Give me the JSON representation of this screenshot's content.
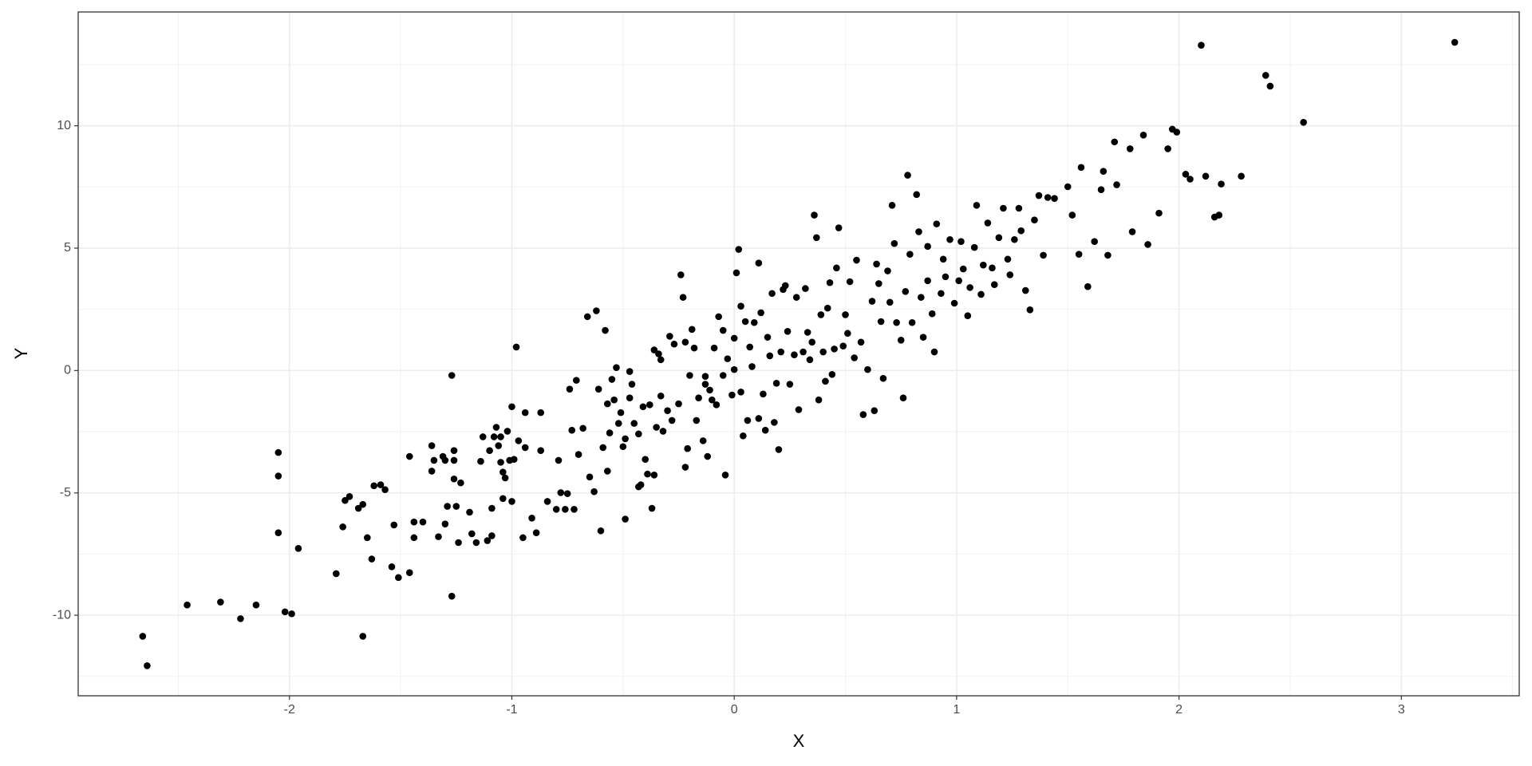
{
  "chart_data": {
    "type": "scatter",
    "x_label": "X",
    "y_label": "Y",
    "color": "#000000",
    "grid": true,
    "xlim": [
      -2.95,
      3.53
    ],
    "ylim": [
      -13.29,
      14.65
    ],
    "xticks": [
      -2,
      -1,
      0,
      1,
      2,
      3
    ],
    "yticks": [
      -10,
      -5,
      0,
      5,
      10
    ],
    "xminor": [
      -2.5,
      -1.5,
      -0.5,
      0.5,
      1.5,
      2.5,
      3.5
    ],
    "yminor": [
      -12.5,
      -7.5,
      -2.5,
      2.5,
      7.5,
      12.5
    ],
    "x": [
      -2.66,
      -2.64,
      -2.46,
      -2.31,
      -2.22,
      -2.15,
      -2.05,
      -2.05,
      -2.05,
      -2.02,
      -1.99,
      -1.96,
      -1.79,
      -1.76,
      -1.75,
      -1.73,
      -1.69,
      -1.67,
      -1.67,
      -1.65,
      -1.63,
      -1.62,
      -1.59,
      -1.57,
      -1.54,
      -1.53,
      -1.51,
      -1.46,
      -1.46,
      -1.44,
      -1.44,
      -1.4,
      -1.36,
      -1.36,
      -1.35,
      -1.33,
      -1.31,
      -1.3,
      -1.3,
      -1.29,
      -1.27,
      -1.27,
      -1.26,
      -1.26,
      -1.25,
      -1.26,
      -1.24,
      -1.23,
      -1.19,
      -1.18,
      -1.16,
      -1.14,
      -1.13,
      -1.11,
      -1.1,
      -1.09,
      -1.09,
      -1.08,
      -1.07,
      -1.06,
      -1.05,
      -1.05,
      -1.04,
      -1.04,
      -1.03,
      -1.02,
      -1.01,
      -1.0,
      -1.0,
      -0.99,
      -0.98,
      -0.97,
      -0.95,
      -0.94,
      -0.94,
      -0.91,
      -0.89,
      -0.87,
      -0.87,
      -0.84,
      -0.8,
      -0.79,
      -0.78,
      -0.76,
      -0.75,
      -0.74,
      -0.73,
      -0.72,
      -0.71,
      -0.7,
      -0.68,
      -0.66,
      -0.65,
      -0.63,
      -0.62,
      -0.61,
      -0.6,
      -0.59,
      -0.58,
      -0.57,
      -0.57,
      -0.56,
      -0.55,
      -0.54,
      -0.53,
      -0.52,
      -0.51,
      -0.5,
      -0.49,
      -0.49,
      -0.47,
      -0.47,
      -0.46,
      -0.45,
      -0.43,
      -0.43,
      -0.42,
      -0.41,
      -0.4,
      -0.39,
      -0.38,
      -0.37,
      -0.36,
      -0.36,
      -0.35,
      -0.34,
      -0.33,
      -0.33,
      -0.32,
      -0.3,
      -0.29,
      -0.28,
      -0.27,
      -0.25,
      -0.24,
      -0.23,
      -0.22,
      -0.22,
      -0.21,
      -0.2,
      -0.19,
      -0.18,
      -0.17,
      -0.16,
      -0.14,
      -0.13,
      -0.13,
      -0.12,
      -0.11,
      -0.1,
      -0.09,
      -0.08,
      -0.07,
      -0.05,
      -0.05,
      -0.04,
      -0.03,
      -0.01,
      0.0,
      0.0,
      0.01,
      0.02,
      0.03,
      0.03,
      0.04,
      0.05,
      0.06,
      0.07,
      0.08,
      0.09,
      0.11,
      0.11,
      0.12,
      0.13,
      0.14,
      0.15,
      0.16,
      0.17,
      0.18,
      0.19,
      0.2,
      0.21,
      0.22,
      0.23,
      0.24,
      0.25,
      0.27,
      0.28,
      0.29,
      0.31,
      0.32,
      0.33,
      0.34,
      0.35,
      0.36,
      0.37,
      0.38,
      0.39,
      0.4,
      0.41,
      0.42,
      0.43,
      0.44,
      0.45,
      0.46,
      0.47,
      0.49,
      0.5,
      0.51,
      0.52,
      0.54,
      0.55,
      0.57,
      0.58,
      0.6,
      0.62,
      0.63,
      0.64,
      0.65,
      0.66,
      0.67,
      0.69,
      0.7,
      0.71,
      0.72,
      0.73,
      0.75,
      0.76,
      0.77,
      0.78,
      0.79,
      0.8,
      0.82,
      0.83,
      0.84,
      0.85,
      0.87,
      0.87,
      0.89,
      0.9,
      0.91,
      0.93,
      0.94,
      0.95,
      0.97,
      0.99,
      1.01,
      1.02,
      1.03,
      1.05,
      1.06,
      1.08,
      1.09,
      1.11,
      1.12,
      1.14,
      1.16,
      1.17,
      1.19,
      1.21,
      1.23,
      1.24,
      1.26,
      1.28,
      1.29,
      1.31,
      1.33,
      1.35,
      1.37,
      1.39,
      1.41,
      1.44,
      1.5,
      1.52,
      1.55,
      1.56,
      1.59,
      1.62,
      1.65,
      1.66,
      1.68,
      1.71,
      1.72,
      1.78,
      1.79,
      1.84,
      1.86,
      1.91,
      1.95,
      1.97,
      1.99,
      2.03,
      2.05,
      2.1,
      2.12,
      2.16,
      2.18,
      2.19,
      2.28,
      2.39,
      2.41,
      2.56,
      3.24
    ],
    "y": [
      -10.86,
      -12.06,
      -9.58,
      -9.46,
      -10.14,
      -9.58,
      -3.35,
      -4.31,
      -6.63,
      -9.86,
      -9.94,
      -7.27,
      -8.3,
      -6.39,
      -5.31,
      -5.15,
      -5.63,
      -5.47,
      -10.86,
      -6.83,
      -7.7,
      -4.71,
      -4.67,
      -4.87,
      -8.02,
      -6.31,
      -8.46,
      -8.26,
      -3.51,
      -6.83,
      -6.19,
      -6.19,
      -3.07,
      -4.11,
      -3.67,
      -6.79,
      -3.51,
      -3.67,
      -6.27,
      -5.55,
      -0.2,
      -9.22,
      -3.27,
      -3.67,
      -5.55,
      -4.43,
      -7.03,
      -4.59,
      -5.79,
      -6.67,
      -7.03,
      -3.71,
      -2.71,
      -6.95,
      -3.27,
      -5.63,
      -6.75,
      -2.71,
      -2.32,
      -3.07,
      -2.71,
      -3.75,
      -4.15,
      -5.23,
      -4.39,
      -2.48,
      -3.67,
      -5.35,
      -1.48,
      -3.63,
      0.96,
      -2.87,
      -6.83,
      -3.15,
      -1.72,
      -6.03,
      -6.63,
      -1.72,
      -3.27,
      -5.35,
      -5.67,
      -3.67,
      -4.99,
      -5.67,
      -5.03,
      -0.76,
      -2.44,
      -5.67,
      -0.4,
      -3.43,
      -2.36,
      2.2,
      -4.35,
      -4.95,
      2.44,
      -0.76,
      -6.55,
      -3.15,
      1.64,
      -1.36,
      -4.11,
      -2.55,
      -0.36,
      -1.2,
      0.12,
      -2.16,
      -1.72,
      -3.11,
      -6.07,
      -2.79,
      -1.12,
      -0.04,
      -0.56,
      -2.16,
      -4.75,
      -2.59,
      -4.67,
      -1.48,
      -3.63,
      -4.23,
      -1.4,
      -5.63,
      0.84,
      -4.27,
      -2.32,
      0.68,
      -1.04,
      0.44,
      -2.48,
      -1.64,
      1.4,
      -2.04,
      1.08,
      -1.36,
      3.91,
      2.99,
      -3.95,
      1.16,
      -3.19,
      -0.2,
      1.68,
      0.92,
      -2.04,
      -1.12,
      -2.87,
      -0.56,
      -0.24,
      -3.51,
      -0.8,
      -1.2,
      0.92,
      -1.4,
      2.2,
      1.64,
      -0.2,
      -4.27,
      0.48,
      -1.0,
      0.04,
      1.32,
      3.99,
      4.95,
      2.63,
      -0.88,
      -2.67,
      2.0,
      -2.04,
      0.96,
      0.16,
      1.96,
      -1.96,
      4.39,
      2.36,
      -0.96,
      -2.44,
      1.36,
      0.6,
      3.15,
      -2.12,
      -0.52,
      -3.23,
      0.76,
      3.31,
      3.47,
      1.6,
      -0.56,
      0.64,
      2.99,
      -1.6,
      0.76,
      3.35,
      1.56,
      0.44,
      1.16,
      6.35,
      5.43,
      -1.2,
      2.28,
      0.76,
      -0.44,
      2.55,
      3.59,
      -0.16,
      0.88,
      4.19,
      5.83,
      1.0,
      2.28,
      1.52,
      3.63,
      0.52,
      4.51,
      1.16,
      -1.8,
      0.04,
      2.83,
      -1.64,
      4.35,
      3.55,
      2.0,
      -0.32,
      4.07,
      2.79,
      6.75,
      5.19,
      1.96,
      1.24,
      -1.12,
      3.23,
      7.98,
      4.75,
      1.96,
      7.19,
      5.67,
      2.99,
      1.36,
      3.67,
      5.07,
      2.32,
      0.76,
      5.99,
      3.15,
      4.55,
      3.83,
      5.35,
      2.75,
      3.67,
      5.27,
      4.15,
      2.24,
      3.39,
      5.03,
      6.75,
      3.11,
      4.31,
      6.03,
      4.19,
      3.51,
      5.43,
      6.63,
      4.55,
      3.91,
      5.35,
      6.63,
      5.71,
      3.27,
      2.48,
      6.15,
      7.15,
      4.71,
      7.07,
      7.03,
      7.51,
      6.35,
      4.75,
      8.3,
      3.43,
      5.27,
      7.39,
      8.14,
      4.71,
      9.34,
      7.59,
      9.06,
      5.67,
      9.62,
      5.15,
      6.43,
      9.06,
      9.86,
      9.74,
      8.02,
      7.82,
      13.29,
      7.94,
      6.27,
      6.35,
      7.62,
      7.94,
      12.06,
      11.62,
      10.14,
      13.41
    ]
  }
}
